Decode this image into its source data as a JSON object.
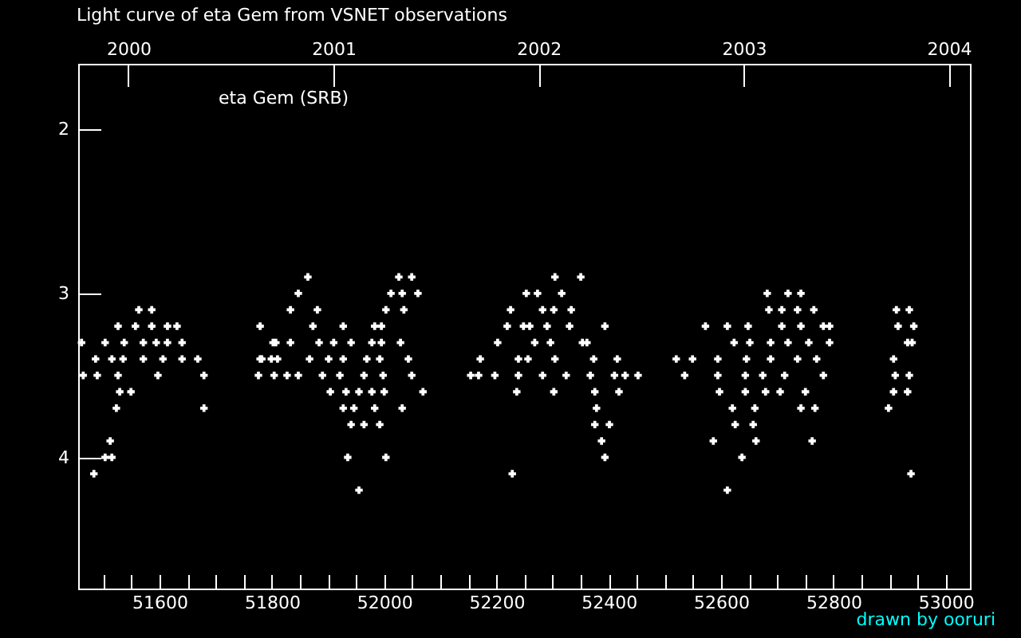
{
  "chart_data": {
    "type": "scatter",
    "title": "Light curve of eta Gem from VSNET observations",
    "annotations": [
      "eta Gem (SRB)",
      "drawn by ooruri"
    ],
    "marker": "cross",
    "xlim": [
      51455,
      53043
    ],
    "ylim": [
      4.8,
      1.6
    ],
    "yticks": [
      2,
      3,
      4
    ],
    "xticks": [
      {
        "value": 51500,
        "label": null
      },
      {
        "value": 51550,
        "label": null
      },
      51600,
      {
        "value": 51650,
        "label": null
      },
      {
        "value": 51700,
        "label": null
      },
      {
        "value": 51750,
        "label": null
      },
      51800,
      {
        "value": 51850,
        "label": null
      },
      {
        "value": 51900,
        "label": null
      },
      {
        "value": 51950,
        "label": null
      },
      52000,
      {
        "value": 52050,
        "label": null
      },
      {
        "value": 52100,
        "label": null
      },
      {
        "value": 52150,
        "label": null
      },
      52200,
      {
        "value": 52250,
        "label": null
      },
      {
        "value": 52300,
        "label": null
      },
      {
        "value": 52350,
        "label": null
      },
      52400,
      {
        "value": 52450,
        "label": null
      },
      {
        "value": 52500,
        "label": null
      },
      {
        "value": 52550,
        "label": null
      },
      52600,
      {
        "value": 52650,
        "label": null
      },
      {
        "value": 52700,
        "label": null
      },
      {
        "value": 52750,
        "label": null
      },
      52800,
      {
        "value": 52850,
        "label": null
      },
      {
        "value": 52900,
        "label": null
      },
      {
        "value": 52950,
        "label": null
      },
      53000
    ],
    "x2lim": [
      1999.755,
      2004.103
    ],
    "x2ticks": [
      2000,
      2001,
      2002,
      2003,
      2004
    ],
    "series": [
      {
        "color": "#ffffff",
        "x": [
          51563,
          51586,
          51833,
          51864,
          51847,
          51526,
          51557,
          51586,
          51614,
          51631,
          51873,
          51461,
          51503,
          51537,
          51571,
          51594,
          51614,
          51640,
          51802,
          51833,
          51486,
          51515,
          51535,
          51571,
          51606,
          51640,
          51668,
          51782,
          51799,
          51867,
          51464,
          51489,
          51526,
          51597,
          51679,
          51776,
          51827,
          51847,
          51529,
          51549,
          51523,
          51679,
          51512,
          51503,
          51515,
          51483,
          52026,
          52049,
          52012,
          52032,
          52060,
          51881,
          52003,
          52035,
          51779,
          51927,
          51983,
          51995,
          51807,
          51884,
          51910,
          51941,
          51978,
          51995,
          52029,
          51779,
          51810,
          51901,
          51927,
          51969,
          51992,
          52043,
          51804,
          51890,
          51921,
          51964,
          51998,
          52049,
          51904,
          51932,
          51955,
          51978,
          52000,
          52069,
          51927,
          51946,
          51983,
          52032,
          51941,
          51964,
          51992,
          51935,
          52003,
          51955,
          52304,
          52350,
          52253,
          52273,
          52316,
          52225,
          52282,
          52302,
          52333,
          52219,
          52248,
          52259,
          52290,
          52330,
          52393,
          52202,
          52268,
          52296,
          52353,
          52361,
          52171,
          52239,
          52256,
          52304,
          52373,
          52415,
          52154,
          52168,
          52197,
          52239,
          52282,
          52324,
          52367,
          52410,
          52429,
          52452,
          52236,
          52302,
          52375,
          52418,
          52378,
          52375,
          52401,
          52387,
          52393,
          52228,
          52682,
          52719,
          52742,
          52685,
          52708,
          52736,
          52765,
          52912,
          52935,
          52572,
          52611,
          52648,
          52708,
          52742,
          52782,
          52793,
          52915,
          52943,
          52623,
          52651,
          52688,
          52719,
          52756,
          52793,
          52932,
          52940,
          52520,
          52549,
          52594,
          52645,
          52688,
          52736,
          52770,
          52907,
          52535,
          52594,
          52643,
          52674,
          52713,
          52782,
          52910,
          52935,
          52597,
          52643,
          52679,
          52705,
          52750,
          52907,
          52932,
          52620,
          52660,
          52742,
          52767,
          52898,
          52625,
          52657,
          52586,
          52662,
          52762,
          52637,
          52938,
          52611
        ],
        "values": [
          3.1,
          3.1,
          3.1,
          2.9,
          3.0,
          3.2,
          3.2,
          3.2,
          3.2,
          3.2,
          3.2,
          3.3,
          3.3,
          3.3,
          3.3,
          3.3,
          3.3,
          3.3,
          3.3,
          3.3,
          3.4,
          3.4,
          3.4,
          3.4,
          3.4,
          3.4,
          3.4,
          3.4,
          3.4,
          3.4,
          3.5,
          3.5,
          3.5,
          3.5,
          3.5,
          3.5,
          3.5,
          3.5,
          3.6,
          3.6,
          3.7,
          3.7,
          3.9,
          4.0,
          4.0,
          4.1,
          2.9,
          2.9,
          3.0,
          3.0,
          3.0,
          3.1,
          3.1,
          3.1,
          3.2,
          3.2,
          3.2,
          3.2,
          3.3,
          3.3,
          3.3,
          3.3,
          3.3,
          3.3,
          3.3,
          3.4,
          3.4,
          3.4,
          3.4,
          3.4,
          3.4,
          3.4,
          3.5,
          3.5,
          3.5,
          3.5,
          3.5,
          3.5,
          3.6,
          3.6,
          3.6,
          3.6,
          3.6,
          3.6,
          3.7,
          3.7,
          3.7,
          3.7,
          3.8,
          3.8,
          3.8,
          4.0,
          4.0,
          4.2,
          2.9,
          2.9,
          3.0,
          3.0,
          3.0,
          3.1,
          3.1,
          3.1,
          3.1,
          3.2,
          3.2,
          3.2,
          3.2,
          3.2,
          3.2,
          3.3,
          3.3,
          3.3,
          3.3,
          3.3,
          3.4,
          3.4,
          3.4,
          3.4,
          3.4,
          3.4,
          3.5,
          3.5,
          3.5,
          3.5,
          3.5,
          3.5,
          3.5,
          3.5,
          3.5,
          3.5,
          3.6,
          3.6,
          3.6,
          3.6,
          3.7,
          3.8,
          3.8,
          3.9,
          4.0,
          4.1,
          3.0,
          3.0,
          3.0,
          3.1,
          3.1,
          3.1,
          3.1,
          3.1,
          3.1,
          3.2,
          3.2,
          3.2,
          3.2,
          3.2,
          3.2,
          3.2,
          3.2,
          3.2,
          3.3,
          3.3,
          3.3,
          3.3,
          3.3,
          3.3,
          3.3,
          3.3,
          3.4,
          3.4,
          3.4,
          3.4,
          3.4,
          3.4,
          3.4,
          3.4,
          3.5,
          3.5,
          3.5,
          3.5,
          3.5,
          3.5,
          3.5,
          3.5,
          3.6,
          3.6,
          3.6,
          3.6,
          3.6,
          3.6,
          3.6,
          3.7,
          3.7,
          3.7,
          3.7,
          3.7,
          3.8,
          3.8,
          3.9,
          3.9,
          3.9,
          4.0,
          4.1,
          4.2
        ]
      }
    ]
  }
}
